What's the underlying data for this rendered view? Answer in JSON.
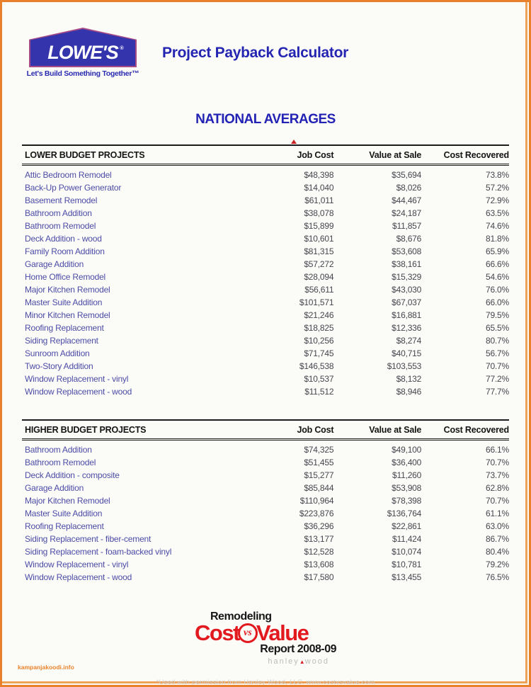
{
  "page": {
    "title": "Project Payback Calculator",
    "section_heading": "NATIONAL AVERAGES",
    "footnote": "*Used with permission from Hanley Wood, LLC. www.costvsvalue.com",
    "watermark": "kampanjakoodi.info"
  },
  "logo": {
    "name": "LOWE'S",
    "registered_mark": "®",
    "tagline": "Let's Build Something Together™"
  },
  "tables": [
    {
      "title": "LOWER BUDGET PROJECTS",
      "columns": [
        "Job Cost",
        "Value at Sale",
        "Cost Recovered"
      ],
      "rows": [
        {
          "project": "Attic Bedroom Remodel",
          "job_cost": "$48,398",
          "value_at_sale": "$35,694",
          "cost_recovered": "73.8%"
        },
        {
          "project": "Back-Up Power Generator",
          "job_cost": "$14,040",
          "value_at_sale": "$8,026",
          "cost_recovered": "57.2%"
        },
        {
          "project": "Basement Remodel",
          "job_cost": "$61,011",
          "value_at_sale": "$44,467",
          "cost_recovered": "72.9%"
        },
        {
          "project": "Bathroom Addition",
          "job_cost": "$38,078",
          "value_at_sale": "$24,187",
          "cost_recovered": "63.5%"
        },
        {
          "project": "Bathroom Remodel",
          "job_cost": "$15,899",
          "value_at_sale": "$11,857",
          "cost_recovered": "74.6%"
        },
        {
          "project": "Deck Addition - wood",
          "job_cost": "$10,601",
          "value_at_sale": "$8,676",
          "cost_recovered": "81.8%"
        },
        {
          "project": "Family Room Addition",
          "job_cost": "$81,315",
          "value_at_sale": "$53,608",
          "cost_recovered": "65.9%"
        },
        {
          "project": "Garage Addition",
          "job_cost": "$57,272",
          "value_at_sale": "$38,161",
          "cost_recovered": "66.6%"
        },
        {
          "project": "Home Office Remodel",
          "job_cost": "$28,094",
          "value_at_sale": "$15,329",
          "cost_recovered": "54.6%"
        },
        {
          "project": "Major Kitchen Remodel",
          "job_cost": "$56,611",
          "value_at_sale": "$43,030",
          "cost_recovered": "76.0%"
        },
        {
          "project": "Master Suite Addition",
          "job_cost": "$101,571",
          "value_at_sale": "$67,037",
          "cost_recovered": "66.0%"
        },
        {
          "project": "Minor Kitchen Remodel",
          "job_cost": "$21,246",
          "value_at_sale": "$16,881",
          "cost_recovered": "79.5%"
        },
        {
          "project": "Roofing Replacement",
          "job_cost": "$18,825",
          "value_at_sale": "$12,336",
          "cost_recovered": "65.5%"
        },
        {
          "project": "Siding Replacement",
          "job_cost": "$10,256",
          "value_at_sale": "$8,274",
          "cost_recovered": "80.7%"
        },
        {
          "project": "Sunroom Addition",
          "job_cost": "$71,745",
          "value_at_sale": "$40,715",
          "cost_recovered": "56.7%"
        },
        {
          "project": "Two-Story Addition",
          "job_cost": "$146,538",
          "value_at_sale": "$103,553",
          "cost_recovered": "70.7%"
        },
        {
          "project": "Window Replacement - vinyl",
          "job_cost": "$10,537",
          "value_at_sale": "$8,132",
          "cost_recovered": "77.2%"
        },
        {
          "project": "Window Replacement - wood",
          "job_cost": "$11,512",
          "value_at_sale": "$8,946",
          "cost_recovered": "77.7%"
        }
      ]
    },
    {
      "title": "HIGHER BUDGET PROJECTS",
      "columns": [
        "Job Cost",
        "Value at Sale",
        "Cost Recovered"
      ],
      "rows": [
        {
          "project": "Bathroom Addition",
          "job_cost": "$74,325",
          "value_at_sale": "$49,100",
          "cost_recovered": "66.1%"
        },
        {
          "project": "Bathroom Remodel",
          "job_cost": "$51,455",
          "value_at_sale": "$36,400",
          "cost_recovered": "70.7%"
        },
        {
          "project": "Deck Addition - composite",
          "job_cost": "$15,277",
          "value_at_sale": "$11,260",
          "cost_recovered": "73.7%"
        },
        {
          "project": "Garage Addition",
          "job_cost": "$85,844",
          "value_at_sale": "$53,908",
          "cost_recovered": "62.8%"
        },
        {
          "project": "Major Kitchen Remodel",
          "job_cost": "$110,964",
          "value_at_sale": "$78,398",
          "cost_recovered": "70.7%"
        },
        {
          "project": "Master Suite Addition",
          "job_cost": "$223,876",
          "value_at_sale": "$136,764",
          "cost_recovered": "61.1%"
        },
        {
          "project": "Roofing Replacement",
          "job_cost": "$36,296",
          "value_at_sale": "$22,861",
          "cost_recovered": "63.0%"
        },
        {
          "project": "Siding Replacement - fiber-cement",
          "job_cost": "$13,177",
          "value_at_sale": "$11,424",
          "cost_recovered": "86.7%"
        },
        {
          "project": "Siding Replacement - foam-backed vinyl",
          "job_cost": "$12,528",
          "value_at_sale": "$10,074",
          "cost_recovered": "80.4%"
        },
        {
          "project": "Window Replacement - vinyl",
          "job_cost": "$13,608",
          "value_at_sale": "$10,781",
          "cost_recovered": "79.2%"
        },
        {
          "project": "Window Replacement - wood",
          "job_cost": "$17,580",
          "value_at_sale": "$13,455",
          "cost_recovered": "76.5%"
        }
      ]
    }
  ],
  "footer_logo": {
    "remodeling": "Remodeling",
    "cost": "Cost",
    "vs": "vs",
    "value": "Value",
    "report": "Report 2008-09",
    "hanley": "hanley",
    "wood": "wood",
    "triangle": "▲"
  },
  "colors": {
    "frame_orange": "#e8802c",
    "title_blue": "#2426b2",
    "lowes_blue": "#3434ad",
    "project_blue": "#4c4ca6",
    "cvv_red": "#e2191f",
    "watermark_orange": "#e8832b"
  }
}
